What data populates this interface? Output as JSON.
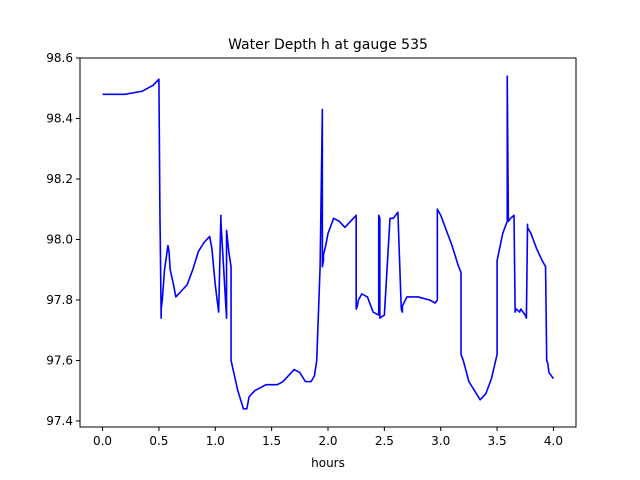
{
  "chart_data": {
    "type": "line",
    "title": "Water Depth h at gauge 535",
    "xlabel": "hours",
    "ylabel": "",
    "xlim": [
      -0.2,
      4.2
    ],
    "ylim": [
      97.38,
      98.6
    ],
    "xticks": [
      0.0,
      0.5,
      1.0,
      1.5,
      2.0,
      2.5,
      3.0,
      3.5,
      4.0
    ],
    "xtick_labels": [
      "0.0",
      "0.5",
      "1.0",
      "1.5",
      "2.0",
      "2.5",
      "3.0",
      "3.5",
      "4.0"
    ],
    "yticks": [
      97.4,
      97.6,
      97.8,
      98.0,
      98.2,
      98.4,
      98.6
    ],
    "ytick_labels": [
      "97.4",
      "97.6",
      "97.8",
      "98.0",
      "98.2",
      "98.4",
      "98.6"
    ],
    "grid": false,
    "series": [
      {
        "name": "",
        "color": "#0000ff",
        "x": [
          0.0,
          0.2,
          0.35,
          0.45,
          0.5,
          0.51,
          0.51,
          0.52,
          0.52,
          0.53,
          0.55,
          0.58,
          0.59,
          0.6,
          0.63,
          0.65,
          0.7,
          0.75,
          0.8,
          0.85,
          0.9,
          0.95,
          0.97,
          1.0,
          1.03,
          1.05,
          1.05,
          1.1,
          1.1,
          1.12,
          1.14,
          1.14,
          1.2,
          1.25,
          1.28,
          1.3,
          1.35,
          1.4,
          1.45,
          1.5,
          1.55,
          1.6,
          1.65,
          1.7,
          1.75,
          1.8,
          1.85,
          1.88,
          1.9,
          1.93,
          1.95,
          1.95,
          1.96,
          1.96,
          1.98,
          2.0,
          2.05,
          2.1,
          2.15,
          2.2,
          2.25,
          2.25,
          2.26,
          2.27,
          2.3,
          2.35,
          2.4,
          2.45,
          2.45,
          2.46,
          2.46,
          2.5,
          2.55,
          2.58,
          2.6,
          2.62,
          2.65,
          2.66,
          2.66,
          2.7,
          2.75,
          2.8,
          2.9,
          2.95,
          2.97,
          2.97,
          3.0,
          3.05,
          3.1,
          3.15,
          3.18,
          3.18,
          3.2,
          3.25,
          3.3,
          3.35,
          3.4,
          3.45,
          3.5,
          3.5,
          3.55,
          3.58,
          3.59,
          3.59,
          3.6,
          3.62,
          3.65,
          3.66,
          3.67,
          3.7,
          3.71,
          3.75,
          3.76,
          3.77,
          3.77,
          3.8,
          3.85,
          3.9,
          3.93,
          3.94,
          3.95,
          3.96,
          3.98,
          4.0
        ],
        "y": [
          98.48,
          98.48,
          98.49,
          98.51,
          98.53,
          98.04,
          98.06,
          97.74,
          97.77,
          97.8,
          97.9,
          97.98,
          97.96,
          97.9,
          97.85,
          97.81,
          97.83,
          97.85,
          97.9,
          97.96,
          97.99,
          98.01,
          97.97,
          97.85,
          97.76,
          98.08,
          98.06,
          97.74,
          98.03,
          97.96,
          97.91,
          97.6,
          97.5,
          97.44,
          97.44,
          97.48,
          97.5,
          97.51,
          97.52,
          97.52,
          97.52,
          97.53,
          97.55,
          97.57,
          97.56,
          97.53,
          97.53,
          97.55,
          97.6,
          97.91,
          98.43,
          97.91,
          97.93,
          97.95,
          97.98,
          98.02,
          98.07,
          98.06,
          98.04,
          98.06,
          98.08,
          97.77,
          97.78,
          97.8,
          97.82,
          97.81,
          97.76,
          97.75,
          98.08,
          98.07,
          97.74,
          97.75,
          98.07,
          98.07,
          98.08,
          98.09,
          97.77,
          97.76,
          97.78,
          97.81,
          97.81,
          97.81,
          97.8,
          97.79,
          97.8,
          98.1,
          98.08,
          98.03,
          97.98,
          97.92,
          97.89,
          97.62,
          97.6,
          97.53,
          97.5,
          97.47,
          97.49,
          97.54,
          97.62,
          97.93,
          98.02,
          98.05,
          98.06,
          98.54,
          98.06,
          98.07,
          98.08,
          97.76,
          97.77,
          97.76,
          97.77,
          97.75,
          97.74,
          98.05,
          98.04,
          98.02,
          97.97,
          97.93,
          97.91,
          97.6,
          97.59,
          97.56,
          97.55,
          97.54
        ]
      }
    ]
  }
}
